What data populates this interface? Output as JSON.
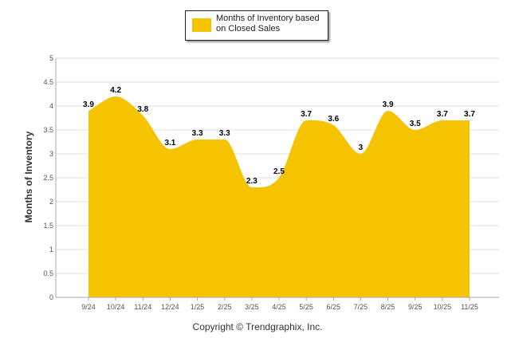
{
  "colors": {
    "area": "#F5C300",
    "grid": "#E2E2E2",
    "axis": "#AAAAAA"
  },
  "legend": {
    "label": "Months of Inventory based on Closed Sales"
  },
  "footer": {
    "copyright": "Copyright © Trendgraphix, Inc."
  },
  "chart_data": {
    "type": "area",
    "categories": [
      "9/24",
      "10/24",
      "11/24",
      "12/24",
      "1/25",
      "2/25",
      "3/25",
      "4/25",
      "5/25",
      "6/25",
      "7/25",
      "8/25",
      "9/25",
      "10/25",
      "11/25"
    ],
    "series": [
      {
        "name": "Months of Inventory based on Closed Sales",
        "values": [
          3.9,
          4.2,
          3.8,
          3.1,
          3.3,
          3.3,
          2.3,
          2.5,
          3.7,
          3.6,
          3,
          3.9,
          3.5,
          3.7,
          3.7
        ]
      }
    ],
    "ylabel": "Months of Inventory",
    "xlabel": "",
    "ylim": [
      0,
      5
    ],
    "yticks": [
      0,
      0.5,
      1,
      1.5,
      2,
      2.5,
      3,
      3.5,
      4,
      4.5,
      5
    ],
    "grid": true,
    "legend_position": "top-center"
  }
}
